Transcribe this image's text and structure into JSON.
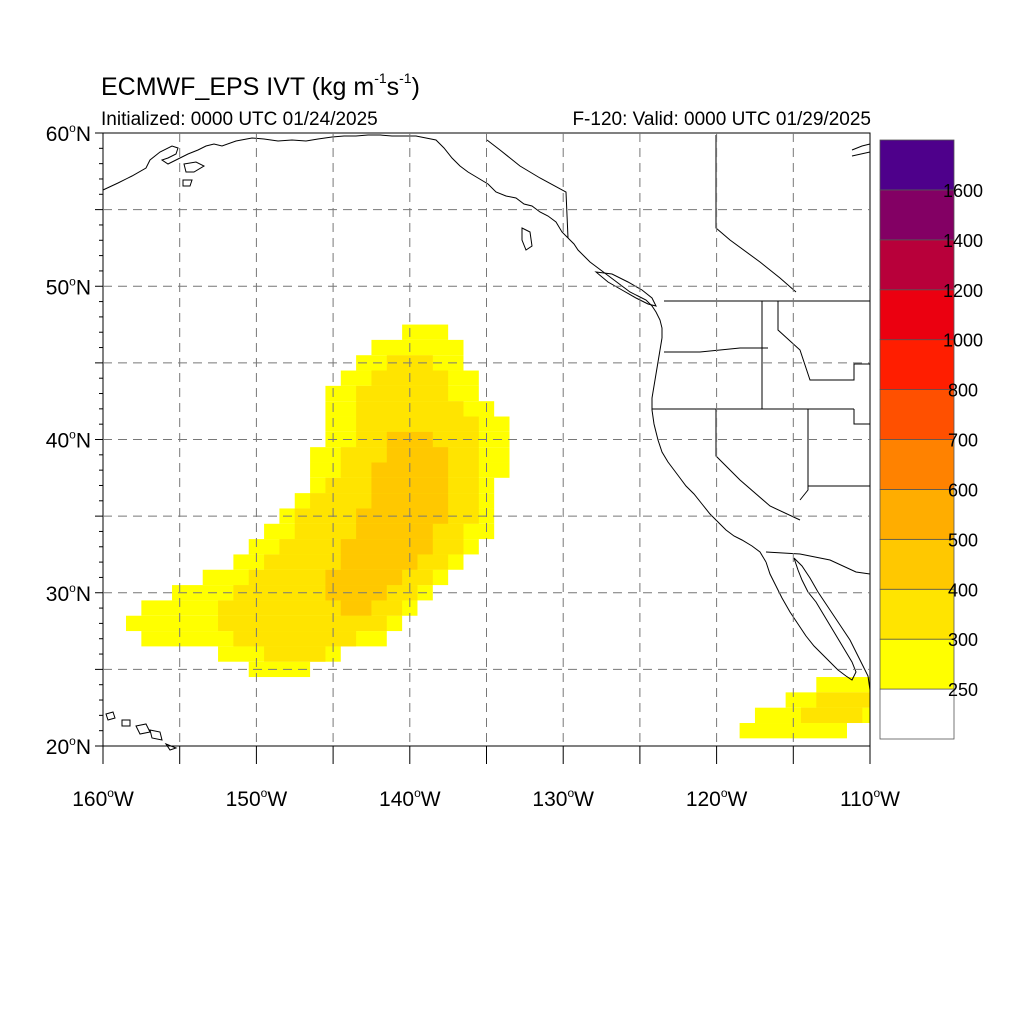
{
  "header": {
    "title_main": "ECMWF_EPS IVT (kg m",
    "title_sup1": "-1",
    "title_mid": "s",
    "title_sup2": "-1",
    "title_end": ")",
    "initialized": "Initialized: 0000 UTC 01/24/2025",
    "valid": "F-120: Valid: 0000 UTC 01/29/2025"
  },
  "map": {
    "lon_range": [
      -160,
      -110
    ],
    "lat_range": [
      20,
      60
    ],
    "lat_labels": [
      {
        "lat": 60,
        "text": "60",
        "hemi": "N"
      },
      {
        "lat": 50,
        "text": "50",
        "hemi": "N"
      },
      {
        "lat": 40,
        "text": "40",
        "hemi": "N"
      },
      {
        "lat": 30,
        "text": "30",
        "hemi": "N"
      },
      {
        "lat": 20,
        "text": "20",
        "hemi": "N"
      }
    ],
    "lon_labels": [
      {
        "lon": -160,
        "text": "160",
        "hemi": "W"
      },
      {
        "lon": -150,
        "text": "150",
        "hemi": "W"
      },
      {
        "lon": -140,
        "text": "140",
        "hemi": "W"
      },
      {
        "lon": -130,
        "text": "130",
        "hemi": "W"
      },
      {
        "lon": -120,
        "text": "120",
        "hemi": "W"
      },
      {
        "lon": -110,
        "text": "110",
        "hemi": "W"
      }
    ],
    "grid_spacing_deg": 5
  },
  "colorbar": {
    "colors": [
      "#ffffff",
      "#ffff00",
      "#ffe400",
      "#ffc800",
      "#ffad00",
      "#ff8200",
      "#ff5000",
      "#ff1e00",
      "#eb0010",
      "#b8003a",
      "#830064",
      "#4e008b"
    ],
    "labels": [
      "250",
      "300",
      "400",
      "500",
      "600",
      "700",
      "800",
      "1000",
      "1200",
      "1400",
      "1600"
    ]
  },
  "ivt": {
    "cell_deg": 1,
    "levels": [
      {
        "name": "250",
        "color": "#ffff00",
        "rows": [
          {
            "lat": 47,
            "lon": [
              -140,
              -138
            ]
          },
          {
            "lat": 46,
            "lon": [
              -142,
              -137
            ]
          },
          {
            "lat": 45,
            "lon": [
              -143,
              -137
            ]
          },
          {
            "lat": 44,
            "lon": [
              -144,
              -136
            ]
          },
          {
            "lat": 43,
            "lon": [
              -145,
              -136
            ]
          },
          {
            "lat": 42,
            "lon": [
              -145,
              -135
            ]
          },
          {
            "lat": 41,
            "lon": [
              -145,
              -134
            ]
          },
          {
            "lat": 40,
            "lon": [
              -145,
              -134
            ]
          },
          {
            "lat": 39,
            "lon": [
              -146,
              -134
            ]
          },
          {
            "lat": 38,
            "lon": [
              -146,
              -134
            ]
          },
          {
            "lat": 37,
            "lon": [
              -146,
              -135
            ]
          },
          {
            "lat": 36,
            "lon": [
              -147,
              -135
            ]
          },
          {
            "lat": 35,
            "lon": [
              -148,
              -135
            ]
          },
          {
            "lat": 34,
            "lon": [
              -149,
              -135
            ]
          },
          {
            "lat": 33,
            "lon": [
              -150,
              -136
            ]
          },
          {
            "lat": 32,
            "lon": [
              -151,
              -137
            ]
          },
          {
            "lat": 31,
            "lon": [
              -153,
              -138
            ]
          },
          {
            "lat": 30,
            "lon": [
              -155,
              -139
            ]
          },
          {
            "lat": 29,
            "lon": [
              -157,
              -140
            ]
          },
          {
            "lat": 28,
            "lon": [
              -158,
              -141
            ]
          },
          {
            "lat": 27,
            "lon": [
              -157,
              -142
            ]
          },
          {
            "lat": 26,
            "lon": [
              -152,
              -145
            ]
          },
          {
            "lat": 25,
            "lon": [
              -150,
              -147
            ]
          },
          {
            "lat": 24,
            "lon": [
              -113,
              -110
            ]
          },
          {
            "lat": 23,
            "lon": [
              -115,
              -110
            ]
          },
          {
            "lat": 22,
            "lon": [
              -117,
              -110
            ]
          },
          {
            "lat": 21,
            "lon": [
              -118,
              -112
            ]
          }
        ]
      },
      {
        "name": "300",
        "color": "#ffe400",
        "rows": [
          {
            "lat": 45,
            "lon": [
              -141,
              -139
            ]
          },
          {
            "lat": 44,
            "lon": [
              -142,
              -138
            ]
          },
          {
            "lat": 43,
            "lon": [
              -143,
              -138
            ]
          },
          {
            "lat": 42,
            "lon": [
              -143,
              -137
            ]
          },
          {
            "lat": 41,
            "lon": [
              -143,
              -136
            ]
          },
          {
            "lat": 40,
            "lon": [
              -143,
              -136
            ]
          },
          {
            "lat": 39,
            "lon": [
              -144,
              -136
            ]
          },
          {
            "lat": 38,
            "lon": [
              -144,
              -136
            ]
          },
          {
            "lat": 37,
            "lon": [
              -145,
              -136
            ]
          },
          {
            "lat": 36,
            "lon": [
              -146,
              -136
            ]
          },
          {
            "lat": 35,
            "lon": [
              -147,
              -136
            ]
          },
          {
            "lat": 34,
            "lon": [
              -147,
              -137
            ]
          },
          {
            "lat": 33,
            "lon": [
              -148,
              -137
            ]
          },
          {
            "lat": 32,
            "lon": [
              -149,
              -138
            ]
          },
          {
            "lat": 31,
            "lon": [
              -150,
              -139
            ]
          },
          {
            "lat": 30,
            "lon": [
              -151,
              -140
            ]
          },
          {
            "lat": 29,
            "lon": [
              -152,
              -141
            ]
          },
          {
            "lat": 28,
            "lon": [
              -152,
              -142
            ]
          },
          {
            "lat": 27,
            "lon": [
              -151,
              -144
            ]
          },
          {
            "lat": 26,
            "lon": [
              -149,
              -146
            ]
          },
          {
            "lat": 23,
            "lon": [
              -113,
              -110
            ]
          },
          {
            "lat": 22,
            "lon": [
              -114,
              -111
            ]
          }
        ]
      },
      {
        "name": "400",
        "color": "#ffc800",
        "rows": [
          {
            "lat": 40,
            "lon": [
              -141,
              -139
            ]
          },
          {
            "lat": 39,
            "lon": [
              -141,
              -138
            ]
          },
          {
            "lat": 38,
            "lon": [
              -142,
              -138
            ]
          },
          {
            "lat": 37,
            "lon": [
              -142,
              -138
            ]
          },
          {
            "lat": 36,
            "lon": [
              -142,
              -138
            ]
          },
          {
            "lat": 35,
            "lon": [
              -143,
              -138
            ]
          },
          {
            "lat": 34,
            "lon": [
              -143,
              -139
            ]
          },
          {
            "lat": 33,
            "lon": [
              -144,
              -139
            ]
          },
          {
            "lat": 32,
            "lon": [
              -144,
              -140
            ]
          },
          {
            "lat": 31,
            "lon": [
              -145,
              -141
            ]
          },
          {
            "lat": 30,
            "lon": [
              -145,
              -142
            ]
          },
          {
            "lat": 29,
            "lon": [
              -144,
              -143
            ]
          }
        ]
      }
    ]
  }
}
